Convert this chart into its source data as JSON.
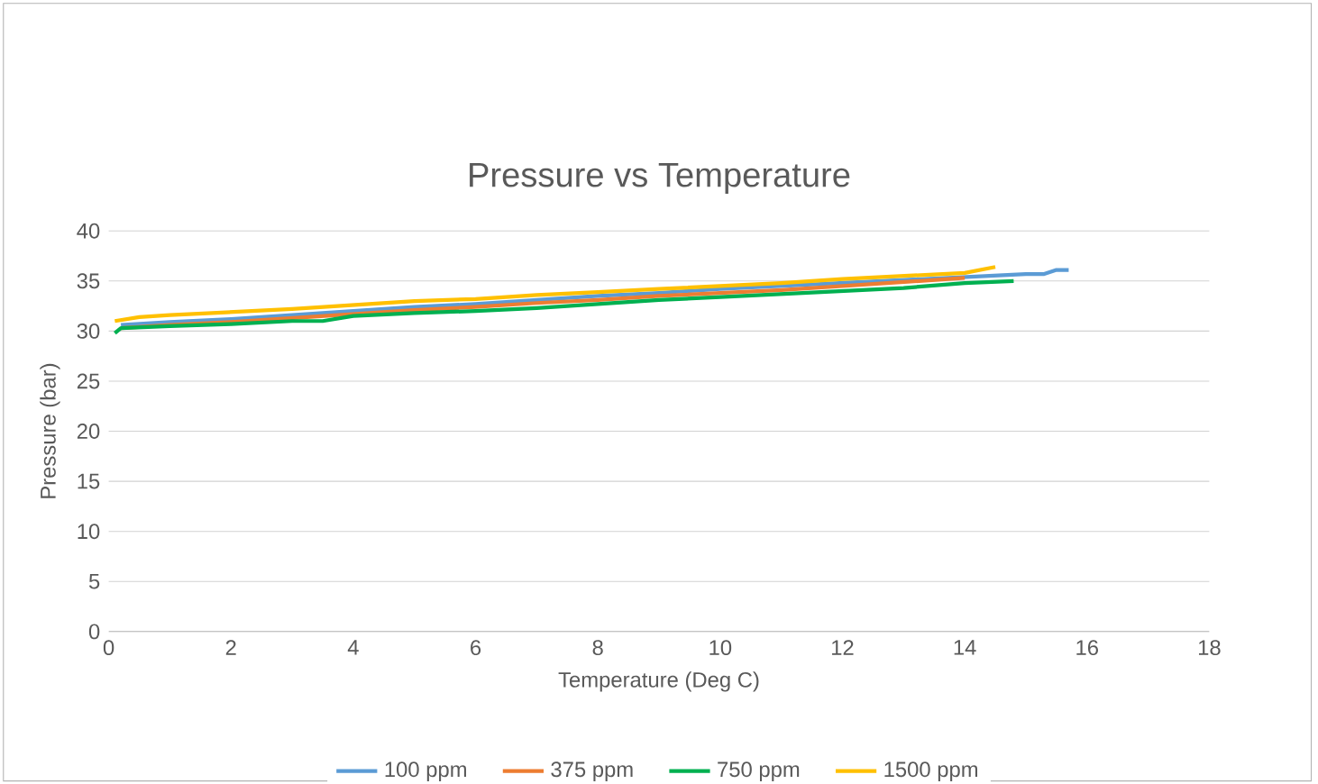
{
  "chart_data": {
    "type": "line",
    "title": "Pressure vs Temperature",
    "xlabel": "Temperature (Deg C)",
    "ylabel": "Pressure (bar)",
    "xlim": [
      0,
      18
    ],
    "ylim": [
      0,
      40
    ],
    "xticks": [
      0,
      2,
      4,
      6,
      8,
      10,
      12,
      14,
      16,
      18
    ],
    "yticks": [
      0,
      5,
      10,
      15,
      20,
      25,
      30,
      35,
      40
    ],
    "grid": "y",
    "legend": "bottom",
    "marker": "none",
    "line_style": "solid",
    "series": [
      {
        "name": "100 ppm",
        "color": "#5b9bd5",
        "x": [
          0.2,
          1,
          2,
          3,
          4,
          5,
          6,
          7,
          8,
          9,
          10,
          11,
          12,
          13,
          14,
          15,
          15.3,
          15.5,
          15.7
        ],
        "values": [
          30.6,
          30.9,
          31.2,
          31.6,
          32.0,
          32.4,
          32.7,
          33.1,
          33.5,
          33.8,
          34.2,
          34.5,
          34.8,
          35.1,
          35.4,
          35.7,
          35.7,
          36.1,
          36.1
        ]
      },
      {
        "name": "375 ppm",
        "color": "#ed7d31",
        "x": [
          0.2,
          1,
          2,
          3,
          4,
          5,
          6,
          7,
          8,
          9,
          10,
          11,
          12,
          13,
          14
        ],
        "values": [
          30.3,
          30.6,
          30.9,
          31.3,
          31.7,
          32.1,
          32.4,
          32.8,
          33.1,
          33.5,
          33.8,
          34.1,
          34.5,
          34.9,
          35.3
        ]
      },
      {
        "name": "750 ppm",
        "color": "#00b050",
        "x": [
          0.1,
          0.2,
          1,
          2,
          3,
          3.5,
          4,
          5,
          6,
          7,
          8,
          9,
          10,
          11,
          12,
          13,
          14,
          14.8
        ],
        "values": [
          29.8,
          30.3,
          30.5,
          30.7,
          31.0,
          31.0,
          31.5,
          31.8,
          32.0,
          32.3,
          32.7,
          33.1,
          33.4,
          33.7,
          34.0,
          34.3,
          34.8,
          35.0
        ]
      },
      {
        "name": "1500 ppm",
        "color": "#ffc000",
        "x": [
          0.1,
          0.5,
          1,
          2,
          3,
          4,
          5,
          6,
          7,
          8,
          9,
          10,
          11,
          12,
          13,
          14,
          14.5
        ],
        "values": [
          31.0,
          31.4,
          31.6,
          31.9,
          32.2,
          32.6,
          33.0,
          33.2,
          33.6,
          33.9,
          34.2,
          34.5,
          34.8,
          35.2,
          35.5,
          35.8,
          36.4
        ]
      }
    ]
  }
}
